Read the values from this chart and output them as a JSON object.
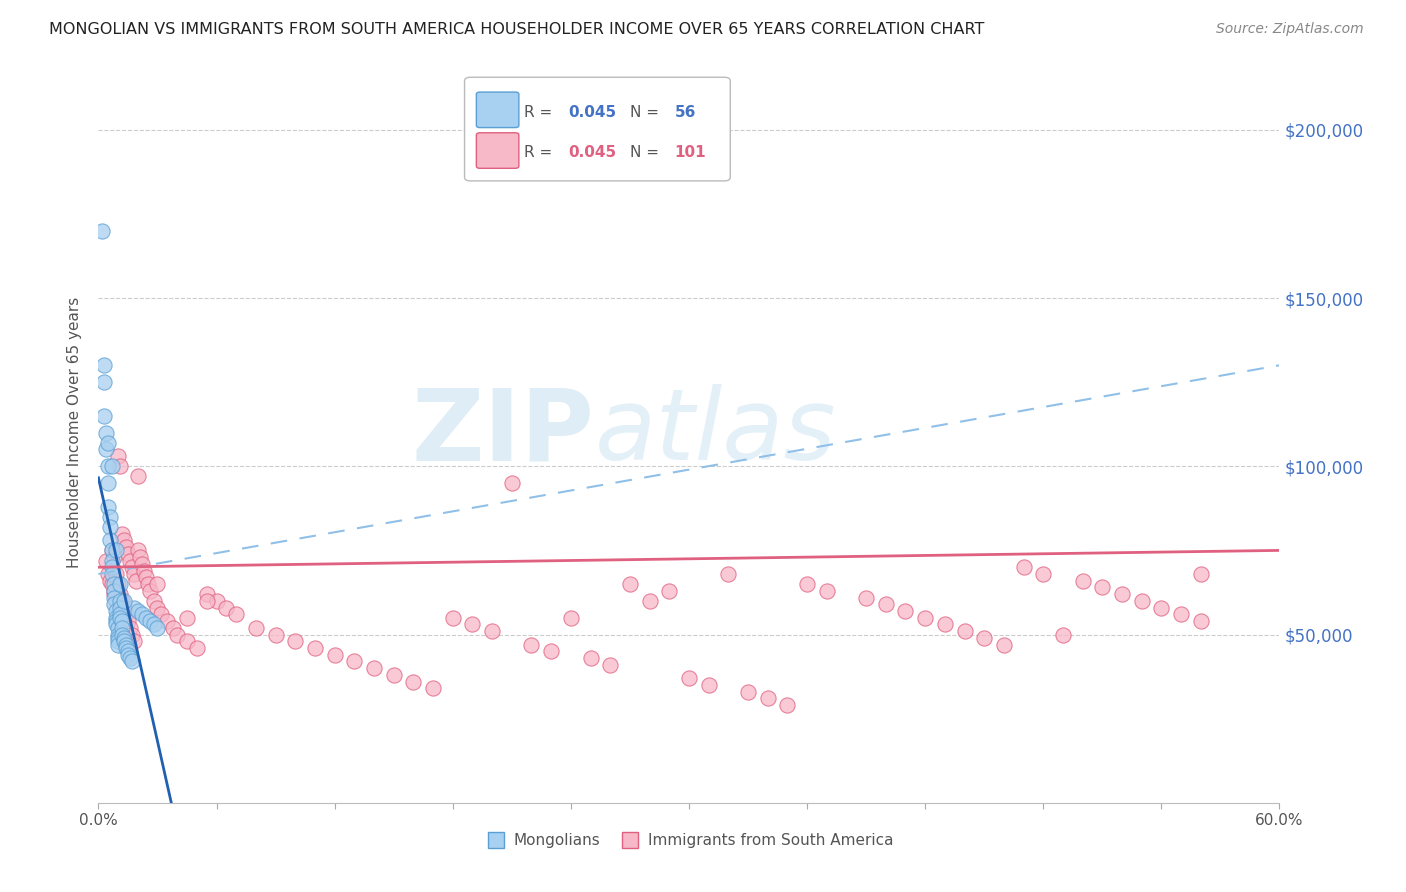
{
  "title": "MONGOLIAN VS IMMIGRANTS FROM SOUTH AMERICA HOUSEHOLDER INCOME OVER 65 YEARS CORRELATION CHART",
  "source": "Source: ZipAtlas.com",
  "ylabel": "Householder Income Over 65 years",
  "ytick_values": [
    50000,
    100000,
    150000,
    200000
  ],
  "ymin": 0,
  "ymax": 220000,
  "xmin": 0.0,
  "xmax": 0.6,
  "mongolian_color": "#a8d0f0",
  "mongolian_edge_color": "#5a9fd4",
  "immigrant_color": "#f7b8c8",
  "immigrant_edge_color": "#e06080",
  "mongolian_R": 0.045,
  "mongolian_N": 56,
  "immigrant_R": 0.045,
  "immigrant_N": 101,
  "trend_blue_solid_color": "#2060b0",
  "trend_blue_dash_color": "#90c0e8",
  "trend_pink_color": "#e06080",
  "watermark_zip_color": "#c5dff0",
  "watermark_atlas_color": "#c5dff0",
  "right_axis_color": "#4472c4",
  "title_color": "#222222",
  "source_color": "#888888",
  "grid_color": "#cccccc",
  "mongolian_x": [
    0.002,
    0.003,
    0.003,
    0.004,
    0.004,
    0.005,
    0.005,
    0.005,
    0.006,
    0.006,
    0.006,
    0.007,
    0.007,
    0.007,
    0.007,
    0.008,
    0.008,
    0.008,
    0.008,
    0.009,
    0.009,
    0.009,
    0.009,
    0.01,
    0.01,
    0.01,
    0.01,
    0.01,
    0.011,
    0.011,
    0.011,
    0.011,
    0.012,
    0.012,
    0.012,
    0.013,
    0.013,
    0.014,
    0.014,
    0.015,
    0.015,
    0.016,
    0.017,
    0.018,
    0.02,
    0.022,
    0.024,
    0.026,
    0.028,
    0.03,
    0.003,
    0.005,
    0.007,
    0.009,
    0.011,
    0.013
  ],
  "mongolian_y": [
    170000,
    130000,
    125000,
    110000,
    105000,
    100000,
    95000,
    88000,
    85000,
    82000,
    78000,
    75000,
    72000,
    70000,
    68000,
    65000,
    63000,
    61000,
    59000,
    57000,
    55000,
    54000,
    53000,
    52000,
    50000,
    49000,
    48000,
    47000,
    60000,
    58000,
    56000,
    55000,
    54000,
    52000,
    50000,
    49000,
    48000,
    47000,
    46000,
    45000,
    44000,
    43000,
    42000,
    58000,
    57000,
    56000,
    55000,
    54000,
    53000,
    52000,
    115000,
    107000,
    100000,
    75000,
    65000,
    60000
  ],
  "immigrant_x": [
    0.004,
    0.005,
    0.006,
    0.007,
    0.007,
    0.008,
    0.008,
    0.009,
    0.009,
    0.01,
    0.01,
    0.011,
    0.011,
    0.012,
    0.012,
    0.013,
    0.013,
    0.014,
    0.014,
    0.015,
    0.015,
    0.016,
    0.016,
    0.017,
    0.017,
    0.018,
    0.018,
    0.019,
    0.02,
    0.021,
    0.022,
    0.023,
    0.024,
    0.025,
    0.026,
    0.028,
    0.03,
    0.032,
    0.035,
    0.038,
    0.04,
    0.045,
    0.05,
    0.055,
    0.06,
    0.065,
    0.07,
    0.08,
    0.09,
    0.1,
    0.11,
    0.12,
    0.13,
    0.14,
    0.15,
    0.16,
    0.17,
    0.18,
    0.19,
    0.2,
    0.22,
    0.23,
    0.25,
    0.26,
    0.27,
    0.29,
    0.3,
    0.31,
    0.33,
    0.34,
    0.35,
    0.36,
    0.37,
    0.39,
    0.4,
    0.41,
    0.42,
    0.43,
    0.44,
    0.45,
    0.46,
    0.47,
    0.48,
    0.5,
    0.51,
    0.52,
    0.53,
    0.54,
    0.55,
    0.56,
    0.008,
    0.02,
    0.03,
    0.045,
    0.055,
    0.21,
    0.24,
    0.28,
    0.32,
    0.49,
    0.56
  ],
  "immigrant_y": [
    72000,
    68000,
    66000,
    75000,
    65000,
    73000,
    62000,
    68000,
    60000,
    103000,
    65000,
    100000,
    62000,
    80000,
    60000,
    78000,
    58000,
    76000,
    56000,
    74000,
    54000,
    72000,
    52000,
    70000,
    50000,
    68000,
    48000,
    66000,
    75000,
    73000,
    71000,
    69000,
    67000,
    65000,
    63000,
    60000,
    58000,
    56000,
    54000,
    52000,
    50000,
    48000,
    46000,
    62000,
    60000,
    58000,
    56000,
    52000,
    50000,
    48000,
    46000,
    44000,
    42000,
    40000,
    38000,
    36000,
    34000,
    55000,
    53000,
    51000,
    47000,
    45000,
    43000,
    41000,
    65000,
    63000,
    37000,
    35000,
    33000,
    31000,
    29000,
    65000,
    63000,
    61000,
    59000,
    57000,
    55000,
    53000,
    51000,
    49000,
    47000,
    70000,
    68000,
    66000,
    64000,
    62000,
    60000,
    58000,
    56000,
    54000,
    63000,
    97000,
    65000,
    55000,
    60000,
    95000,
    55000,
    60000,
    68000,
    50000,
    68000
  ]
}
